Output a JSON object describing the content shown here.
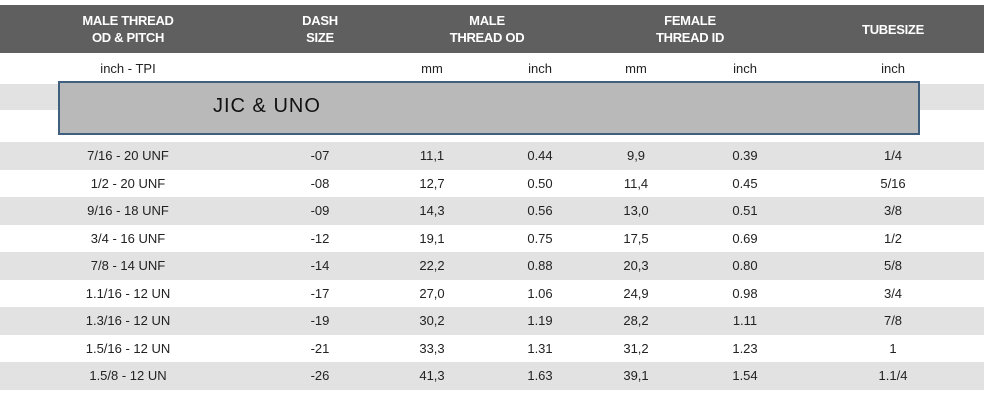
{
  "header": [
    {
      "lines": [
        "MALE THREAD",
        "OD & PITCH"
      ]
    },
    {
      "lines": [
        "DASH",
        "SIZE"
      ]
    },
    {
      "lines": [
        "MALE",
        "THREAD OD"
      ]
    },
    {
      "lines": [
        "FEMALE",
        "THREAD ID"
      ]
    },
    {
      "lines": [
        "TUBESIZE"
      ]
    }
  ],
  "units": [
    "inch - TPI",
    "mm",
    "inch",
    "mm",
    "inch",
    "inch"
  ],
  "banner": "JIC & UNO",
  "table": {
    "rows": [
      [
        "7/16 - 20 UNF",
        "-07",
        "11,1",
        "0.44",
        "9,9",
        "0.39",
        "1/4"
      ],
      [
        "1/2 - 20 UNF",
        "-08",
        "12,7",
        "0.50",
        "11,4",
        "0.45",
        "5/16"
      ],
      [
        "9/16 - 18 UNF",
        "-09",
        "14,3",
        "0.56",
        "13,0",
        "0.51",
        "3/8"
      ],
      [
        "3/4 - 16 UNF",
        "-12",
        "19,1",
        "0.75",
        "17,5",
        "0.69",
        "1/2"
      ],
      [
        "7/8 - 14 UNF",
        "-14",
        "22,2",
        "0.88",
        "20,3",
        "0.80",
        "5/8"
      ],
      [
        "1.1/16 - 12 UN",
        "-17",
        "27,0",
        "1.06",
        "24,9",
        "0.98",
        "3/4"
      ],
      [
        "1.3/16 - 12 UN",
        "-19",
        "30,2",
        "1.19",
        "28,2",
        "1.11",
        "7/8"
      ],
      [
        "1.5/16 - 12 UN",
        "-21",
        "33,3",
        "1.31",
        "31,2",
        "1.23",
        "1"
      ],
      [
        "1.5/8 - 12 UN",
        "-26",
        "41,3",
        "1.63",
        "39,1",
        "1.54",
        "1.1/4"
      ]
    ]
  }
}
